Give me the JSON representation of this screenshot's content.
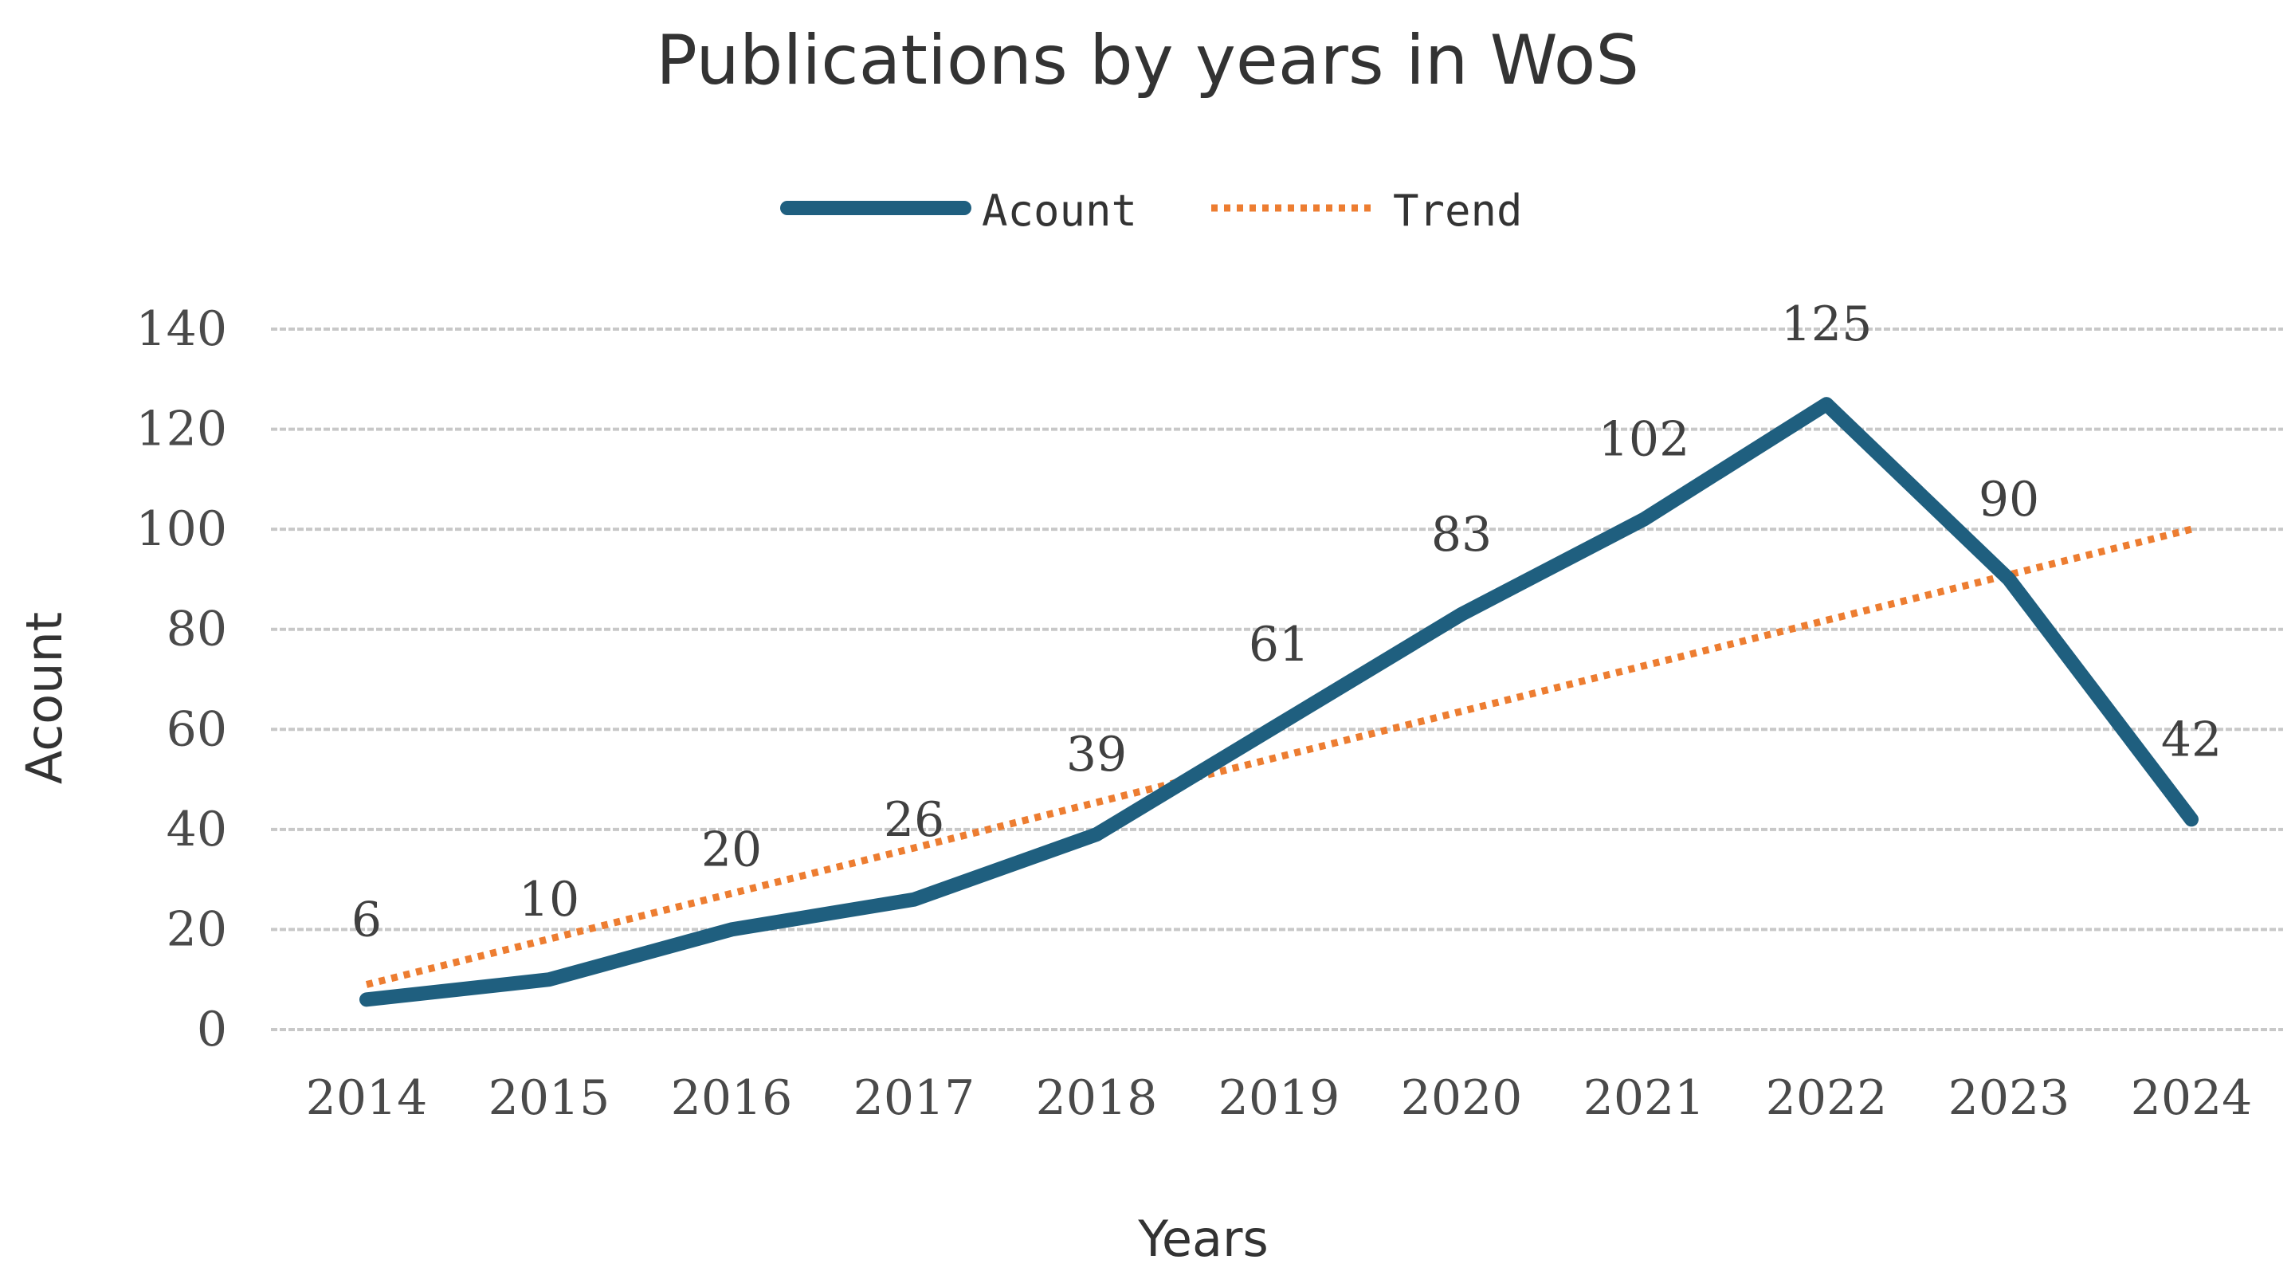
{
  "chart_data": {
    "type": "line",
    "title": "Publications by years in WoS",
    "xlabel": "Years",
    "ylabel": "Acount",
    "categories": [
      "2014",
      "2015",
      "2016",
      "2017",
      "2018",
      "2019",
      "2020",
      "2021",
      "2022",
      "2023",
      "2024"
    ],
    "series": [
      {
        "name": "Acount",
        "values": [
          6,
          10,
          20,
          26,
          39,
          61,
          83,
          102,
          125,
          90,
          42
        ],
        "color": "#1f5f7f",
        "style": "solid"
      },
      {
        "name": "Trend",
        "values": [
          9,
          18.1,
          27.2,
          36.3,
          45.4,
          54.5,
          63.6,
          72.7,
          81.8,
          90.9,
          100
        ],
        "color": "#ed7d31",
        "style": "dotted"
      }
    ],
    "data_labels": [
      "6",
      "10",
      "20",
      "26",
      "39",
      "61",
      "83",
      "102",
      "125",
      "90",
      "42"
    ],
    "ylim": [
      0,
      140
    ],
    "yticks": [
      "0",
      "20",
      "40",
      "60",
      "80",
      "100",
      "120",
      "140"
    ],
    "grid": true,
    "legend": "top-center"
  }
}
